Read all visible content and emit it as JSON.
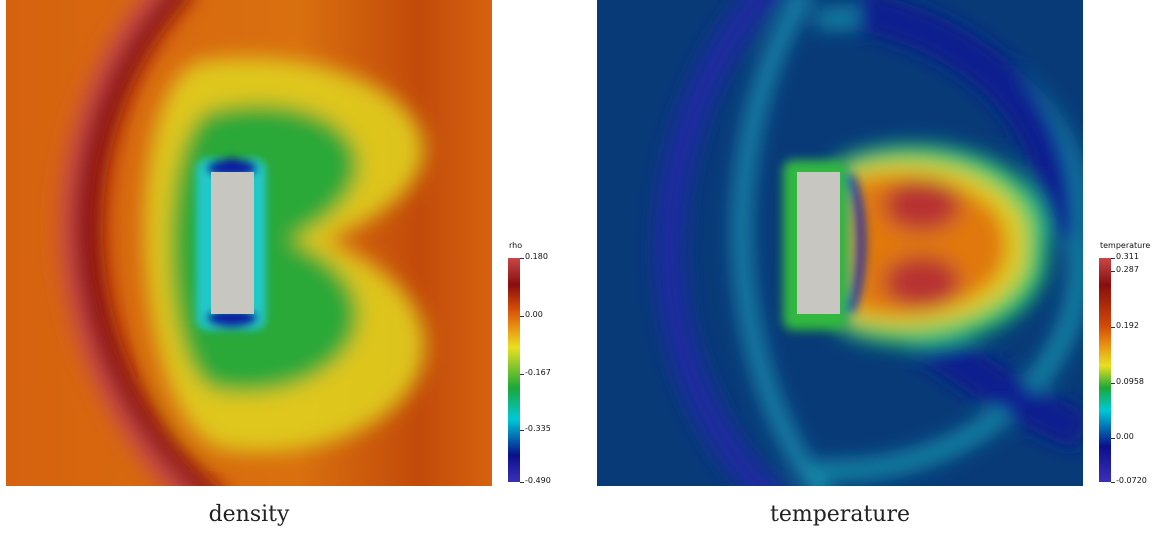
{
  "panels": [
    {
      "caption": "density",
      "colorbar": {
        "title": "rho",
        "ticks": [
          "0.180",
          "0.00",
          "-0.167",
          "-0.335",
          "-0.490"
        ],
        "values": [
          0.18,
          0.0,
          -0.167,
          -0.335,
          -0.49
        ],
        "range": [
          -0.49,
          0.18
        ]
      }
    },
    {
      "caption": "temperature",
      "colorbar": {
        "title": "temperature",
        "ticks": [
          "0.311",
          "0.287",
          "0.192",
          "0.0958",
          "0.00",
          "-0.0720"
        ],
        "values": [
          0.311,
          0.287,
          0.192,
          0.0958,
          0.0,
          -0.072
        ],
        "range": [
          -0.072,
          0.311
        ]
      }
    }
  ],
  "colors": {
    "obstacle": "#c8c6c0",
    "colormap": [
      "#3b2fb8",
      "#0b0f8c",
      "#00c8d8",
      "#1aa83a",
      "#e8e020",
      "#e88a10",
      "#d04808",
      "#8a0d0d",
      "#c84848"
    ]
  }
}
